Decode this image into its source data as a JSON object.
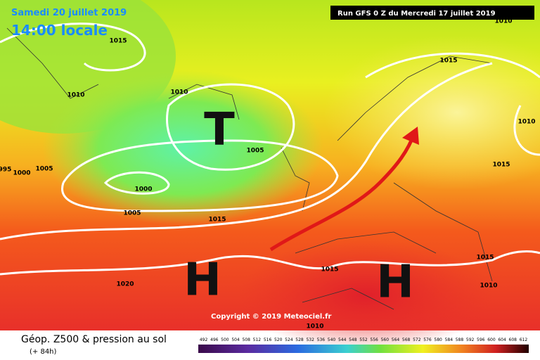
{
  "header": {
    "date": "Samedi 20 juillet 2019",
    "time": "14:00 locale",
    "run": "Run GFS 0 Z du Mercredi 17 juillet 2019"
  },
  "map": {
    "systems": [
      "T",
      "H",
      "H"
    ],
    "isobar_labels": [
      1015,
      1010,
      1010,
      1005,
      1000,
      1005,
      995,
      1000,
      1005,
      1015,
      1020,
      1015,
      1015,
      1010,
      1015,
      1015,
      1010,
      1010,
      1010
    ],
    "copyright": "Copyright © 2019 Meteociel.fr"
  },
  "footer": {
    "title": "Géop. Z500 & pression au sol",
    "lead": "(+ 84h)",
    "scale": [
      492,
      496,
      500,
      504,
      508,
      512,
      516,
      520,
      524,
      528,
      532,
      536,
      540,
      544,
      548,
      552,
      556,
      560,
      564,
      568,
      572,
      576,
      580,
      584,
      588,
      592,
      596,
      600,
      604,
      608,
      612
    ]
  }
}
